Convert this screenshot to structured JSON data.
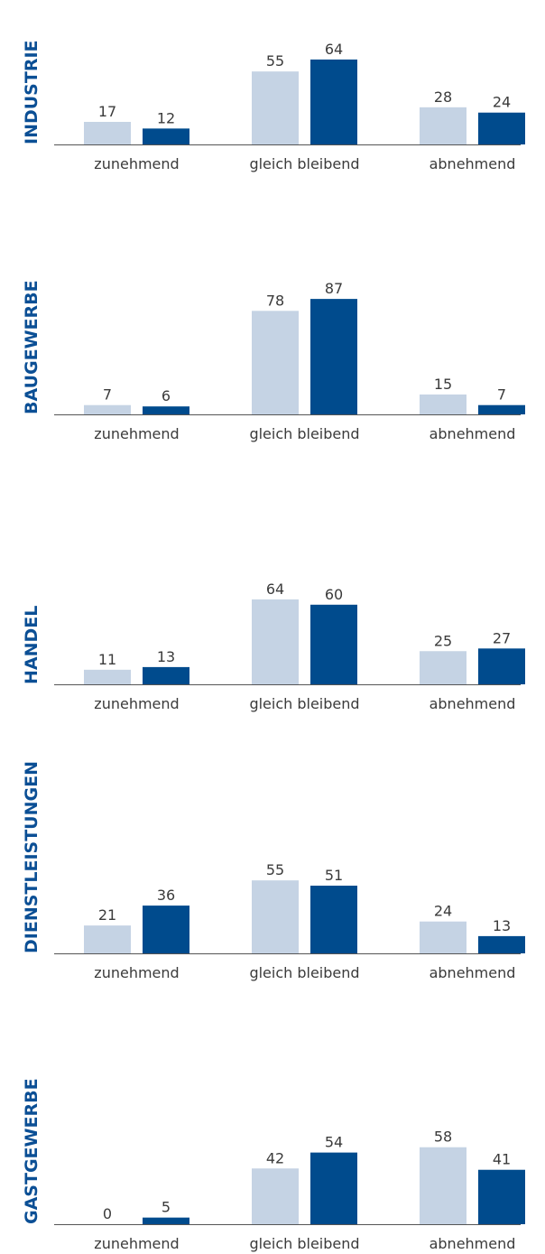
{
  "colors": {
    "light": "#c5d3e4",
    "dark": "#004b8d",
    "title": "#0b4f95",
    "text": "#3b3b3b",
    "axis": "#555555"
  },
  "chart_data": [
    {
      "type": "bar",
      "title": "INDUSTRIE",
      "categories": [
        "zunehmend",
        "gleich bleibend",
        "abnehmend"
      ],
      "series": [
        {
          "values": [
            17,
            55,
            28
          ]
        },
        {
          "values": [
            12,
            64,
            24
          ]
        }
      ]
    },
    {
      "type": "bar",
      "title": "BAUGEWERBE",
      "categories": [
        "zunehmend",
        "gleich bleibend",
        "abnehmend"
      ],
      "series": [
        {
          "values": [
            7,
            78,
            15
          ]
        },
        {
          "values": [
            6,
            87,
            7
          ]
        }
      ]
    },
    {
      "type": "bar",
      "title": "HANDEL",
      "categories": [
        "zunehmend",
        "gleich bleibend",
        "abnehmend"
      ],
      "series": [
        {
          "values": [
            11,
            64,
            25
          ]
        },
        {
          "values": [
            13,
            60,
            27
          ]
        }
      ]
    },
    {
      "type": "bar",
      "title": "DIENSTLEISTUNGEN",
      "categories": [
        "zunehmend",
        "gleich bleibend",
        "abnehmend"
      ],
      "series": [
        {
          "values": [
            21,
            55,
            24
          ]
        },
        {
          "values": [
            36,
            51,
            13
          ]
        }
      ]
    },
    {
      "type": "bar",
      "title": "GASTGEWERBE",
      "categories": [
        "zunehmend",
        "gleich bleibend",
        "abnehmend"
      ],
      "series": [
        {
          "values": [
            0,
            42,
            58
          ]
        },
        {
          "values": [
            5,
            54,
            41
          ]
        }
      ]
    }
  ]
}
